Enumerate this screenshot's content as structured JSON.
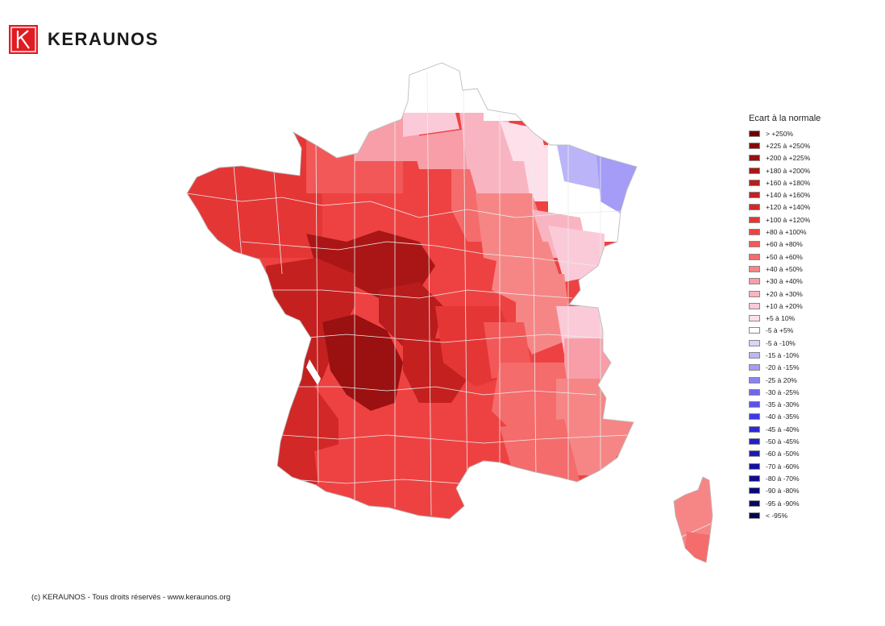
{
  "brand": {
    "name": "KERAUNOS",
    "color": "#e01b22"
  },
  "legend": {
    "title": "Ecart à la normale",
    "items": [
      {
        "label": "> +250%",
        "color": "#6e0000"
      },
      {
        "label": "+225 à +250%",
        "color": "#860a0a"
      },
      {
        "label": "+200 à +225%",
        "color": "#9b1010"
      },
      {
        "label": "+180 à +200%",
        "color": "#aa1616"
      },
      {
        "label": "+160 à +180%",
        "color": "#b81c1c"
      },
      {
        "label": "+140 à +160%",
        "color": "#c42020"
      },
      {
        "label": "+120 à +140%",
        "color": "#d22828"
      },
      {
        "label": "+100 à +120%",
        "color": "#e53636"
      },
      {
        "label": "+80 à +100%",
        "color": "#ee4242"
      },
      {
        "label": "+60 à +80%",
        "color": "#f25858"
      },
      {
        "label": "+50 à +60%",
        "color": "#f46c6c"
      },
      {
        "label": "+40 à +50%",
        "color": "#f68686"
      },
      {
        "label": "+30 à +40%",
        "color": "#f89ea8"
      },
      {
        "label": "+20 à +30%",
        "color": "#f9b4c2"
      },
      {
        "label": "+10 à +20%",
        "color": "#fbcad8"
      },
      {
        "label": "+5 à 10%",
        "color": "#fde0ea"
      },
      {
        "label": "-5 à +5%",
        "color": "#ffffff"
      },
      {
        "label": "-5 à -10%",
        "color": "#d9d2fa"
      },
      {
        "label": "-15 à -10%",
        "color": "#bcb4f8"
      },
      {
        "label": "-20 à -15%",
        "color": "#a49cf6"
      },
      {
        "label": "-25 à 20%",
        "color": "#8a82f2"
      },
      {
        "label": "-30 à -25%",
        "color": "#6f66ee"
      },
      {
        "label": "-35 à -30%",
        "color": "#5a50ea"
      },
      {
        "label": "-40 à -35%",
        "color": "#4038e4"
      },
      {
        "label": "-45 à -40%",
        "color": "#2e28dc"
      },
      {
        "label": "-50 à -45%",
        "color": "#2420c8"
      },
      {
        "label": "-60 à -50%",
        "color": "#1c18b4"
      },
      {
        "label": "-70 à -60%",
        "color": "#14129e"
      },
      {
        "label": "-80 à -70%",
        "color": "#0e0c8a"
      },
      {
        "label": "-90 à -80%",
        "color": "#0a0878"
      },
      {
        "label": "-95 à -90%",
        "color": "#060664"
      },
      {
        "label": "< -95%",
        "color": "#040452"
      }
    ]
  },
  "footer": {
    "text": "(c) KERAUNOS - Tous droits réservés - www.keraunos.org"
  },
  "map": {
    "border_color": "#e8e8e8"
  }
}
